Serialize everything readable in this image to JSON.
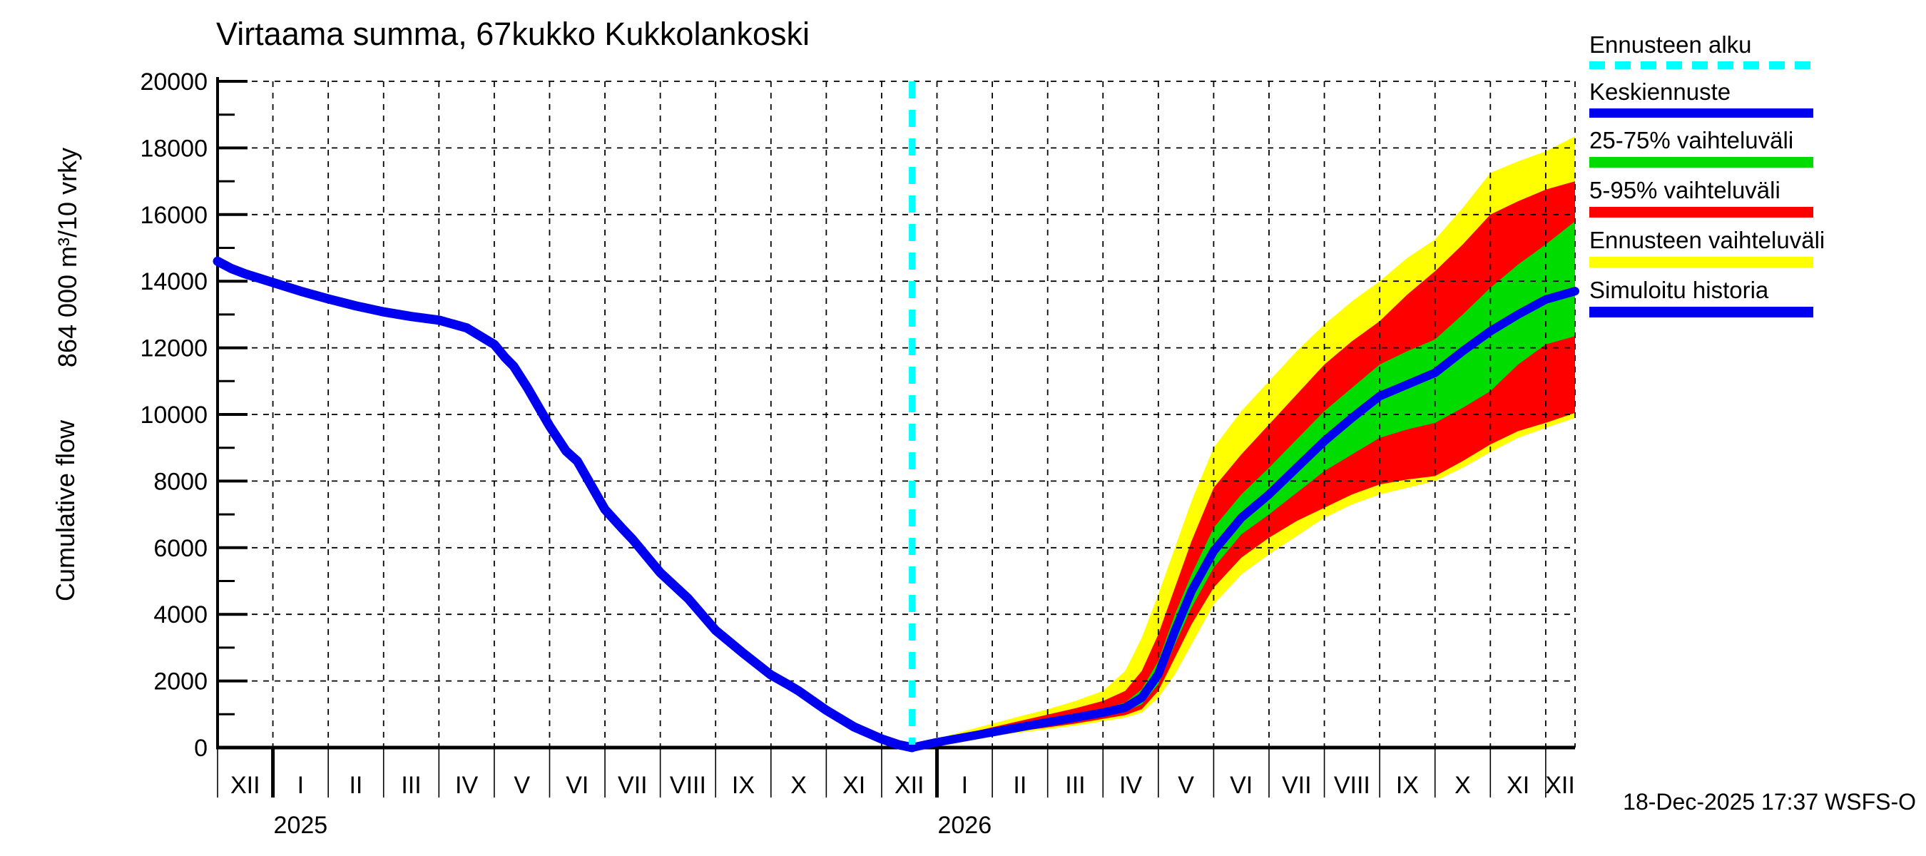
{
  "title": "Virtaama summa, 67kukko Kukkolankoski",
  "y_axis": {
    "name": "Cumulative flow",
    "unit": "864 000 m³/10 vrky",
    "tick_step": 2000,
    "max": 20000,
    "tick_labels": [
      "0",
      "2000",
      "4000",
      "6000",
      "8000",
      "10000",
      "12000",
      "14000",
      "16000",
      "18000",
      "20000"
    ]
  },
  "x_axis": {
    "month_labels": [
      "XII",
      "I",
      "II",
      "III",
      "IV",
      "V",
      "VI",
      "VII",
      "VIII",
      "IX",
      "X",
      "XI",
      "XII",
      "I",
      "II",
      "III",
      "IV",
      "V",
      "VI",
      "VII",
      "VIII",
      "IX",
      "X",
      "XI",
      "XII"
    ],
    "year_labels": [
      {
        "text": "2025",
        "t_center": 1.5
      },
      {
        "text": "2026",
        "t_center": 13.5
      }
    ]
  },
  "legend": {
    "items": [
      {
        "label": "Ennusteen alku",
        "swatch": "cyan-dashed"
      },
      {
        "label": "Keskiennuste",
        "swatch": "blue-line"
      },
      {
        "label": "25-75% vaihteluväli",
        "swatch": "green"
      },
      {
        "label": "5-95% vaihteluväli",
        "swatch": "red"
      },
      {
        "label": "Ennusteen vaihteluväli",
        "swatch": "yellow"
      },
      {
        "label": "Simuloitu historia",
        "swatch": "blue"
      }
    ]
  },
  "footer": {
    "timestamp": "18-Dec-2025 17:37 WSFS-O"
  },
  "colors": {
    "median": "#0000f0",
    "history": "#0000f0",
    "forecast_start": "#00ffff",
    "band_25_75": "#00dc00",
    "band_5_95": "#ff0000",
    "band_total": "#ffff00",
    "grid": "#000000",
    "axis": "#000000"
  },
  "chart_data": {
    "type": "line",
    "title": "Virtaama summa, 67kukko Kukkolankoski",
    "ylabel": "Cumulative flow 864 000 m³/10 vrky",
    "ylim": [
      0,
      20000
    ],
    "x_unit": "months from 1-Dec-2024",
    "x_range_months": 24.53,
    "forecast_start_t": 12.55,
    "grid": "dashed",
    "legend_position": "top-right",
    "history": [
      [
        0,
        14600
      ],
      [
        0.25,
        14380
      ],
      [
        0.5,
        14220
      ],
      [
        1,
        13960
      ],
      [
        1.5,
        13700
      ],
      [
        2,
        13470
      ],
      [
        2.5,
        13260
      ],
      [
        3,
        13080
      ],
      [
        3.5,
        12940
      ],
      [
        4,
        12830
      ],
      [
        4.5,
        12600
      ],
      [
        5,
        12100
      ],
      [
        5.2,
        11700
      ],
      [
        5.35,
        11450
      ],
      [
        5.6,
        10800
      ],
      [
        6,
        9650
      ],
      [
        6.3,
        8900
      ],
      [
        6.5,
        8600
      ],
      [
        7,
        7150
      ],
      [
        7.3,
        6600
      ],
      [
        7.5,
        6250
      ],
      [
        8,
        5250
      ],
      [
        8.5,
        4480
      ],
      [
        9,
        3520
      ],
      [
        9.5,
        2830
      ],
      [
        10,
        2180
      ],
      [
        10.3,
        1900
      ],
      [
        10.5,
        1700
      ],
      [
        11,
        1120
      ],
      [
        11.5,
        620
      ],
      [
        12,
        260
      ],
      [
        12.3,
        90
      ],
      [
        12.55,
        0
      ]
    ],
    "forecast": {
      "t_months": [
        12.55,
        13.0,
        13.5,
        14.0,
        14.5,
        15.0,
        15.5,
        16.0,
        16.4,
        16.7,
        17.0,
        17.3,
        17.6,
        18.0,
        18.5,
        19.0,
        19.5,
        20.0,
        20.5,
        21.0,
        21.5,
        22.0,
        22.5,
        23.0,
        23.5,
        24.0,
        24.53
      ],
      "total_min": [
        0,
        110,
        230,
        350,
        450,
        555,
        660,
        790,
        900,
        1050,
        1500,
        2200,
        3100,
        4300,
        5200,
        5800,
        6350,
        6900,
        7300,
        7600,
        7800,
        8000,
        8400,
        8870,
        9300,
        9600,
        9900
      ],
      "p5": [
        0,
        125,
        255,
        385,
        495,
        605,
        720,
        860,
        975,
        1150,
        1700,
        2700,
        3700,
        4800,
        5700,
        6300,
        6800,
        7200,
        7600,
        7900,
        8050,
        8150,
        8600,
        9100,
        9500,
        9750,
        10050
      ],
      "p25": [
        0,
        140,
        285,
        425,
        550,
        680,
        810,
        955,
        1090,
        1300,
        1900,
        3100,
        4200,
        5400,
        6400,
        7000,
        7650,
        8300,
        8800,
        9300,
        9550,
        9750,
        10200,
        10700,
        11500,
        12100,
        12350
      ],
      "median": [
        0,
        160,
        310,
        460,
        610,
        760,
        900,
        1050,
        1200,
        1500,
        2200,
        3500,
        4700,
        5900,
        6900,
        7600,
        8400,
        9200,
        9900,
        10550,
        10900,
        11250,
        11900,
        12500,
        13000,
        13450,
        13700
      ],
      "p75": [
        0,
        185,
        360,
        525,
        690,
        855,
        1010,
        1160,
        1350,
        1750,
        2600,
        4000,
        5200,
        6600,
        7600,
        8400,
        9250,
        10100,
        10800,
        11500,
        11900,
        12250,
        13000,
        13800,
        14500,
        15100,
        15800
      ],
      "p95": [
        0,
        220,
        420,
        610,
        800,
        990,
        1180,
        1400,
        1700,
        2300,
        3400,
        4800,
        6200,
        7800,
        8800,
        9700,
        10600,
        11500,
        12200,
        12800,
        13600,
        14300,
        15100,
        16000,
        16400,
        16750,
        17000
      ],
      "total_max": [
        0,
        265,
        500,
        720,
        940,
        1150,
        1400,
        1700,
        2300,
        3300,
        4600,
        6000,
        7400,
        9000,
        10100,
        11000,
        11900,
        12700,
        13400,
        14000,
        14700,
        15250,
        16200,
        17250,
        17600,
        17900,
        18350
      ]
    }
  }
}
